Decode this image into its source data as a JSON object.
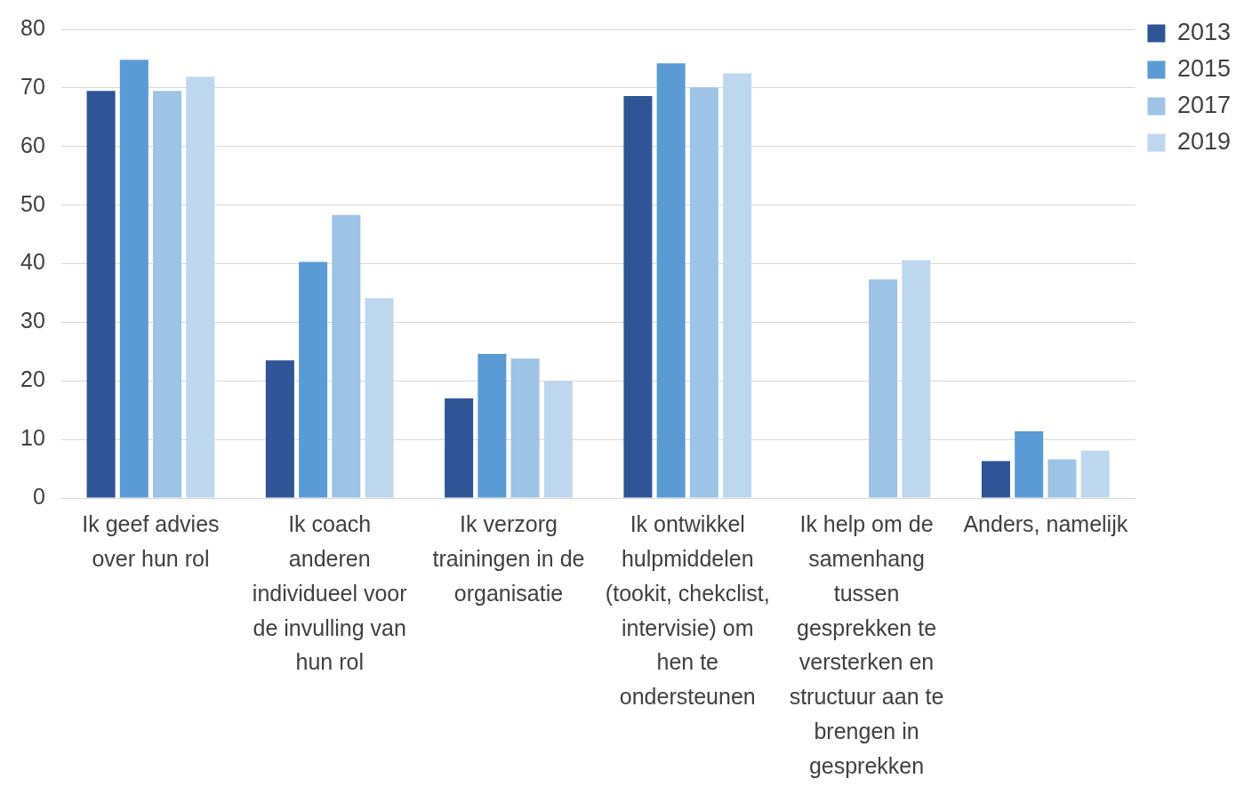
{
  "chart_data": {
    "type": "bar",
    "categories": [
      "Ik geef advies over hun rol",
      "Ik coach anderen individueel voor de invulling van hun rol",
      "Ik verzorg trainingen in de organisatie",
      "Ik ontwikkel hulpmiddelen (tookit, chekclist, intervisie) om hen te ondersteunen",
      "Ik help om de samenhang tussen gesprekken te versterken en structuur aan te brengen in gesprekken",
      "Anders, namelijk"
    ],
    "series": [
      {
        "name": "2013",
        "color": "#2f5597",
        "values": [
          69.5,
          23.5,
          17.0,
          68.6,
          null,
          6.3
        ]
      },
      {
        "name": "2015",
        "color": "#5b9bd5",
        "values": [
          74.8,
          40.3,
          24.6,
          74.2,
          null,
          11.4
        ]
      },
      {
        "name": "2017",
        "color": "#9dc3e6",
        "values": [
          69.5,
          48.3,
          23.8,
          70.1,
          37.3,
          6.6
        ]
      },
      {
        "name": "2019",
        "color": "#bdd7ee",
        "values": [
          71.9,
          34.1,
          19.9,
          72.5,
          40.6,
          8.1
        ]
      }
    ],
    "ylim": [
      0,
      80
    ],
    "yticks": [
      0,
      10,
      20,
      30,
      40,
      50,
      60,
      70,
      80
    ],
    "grid": "y",
    "legend": "top right"
  }
}
